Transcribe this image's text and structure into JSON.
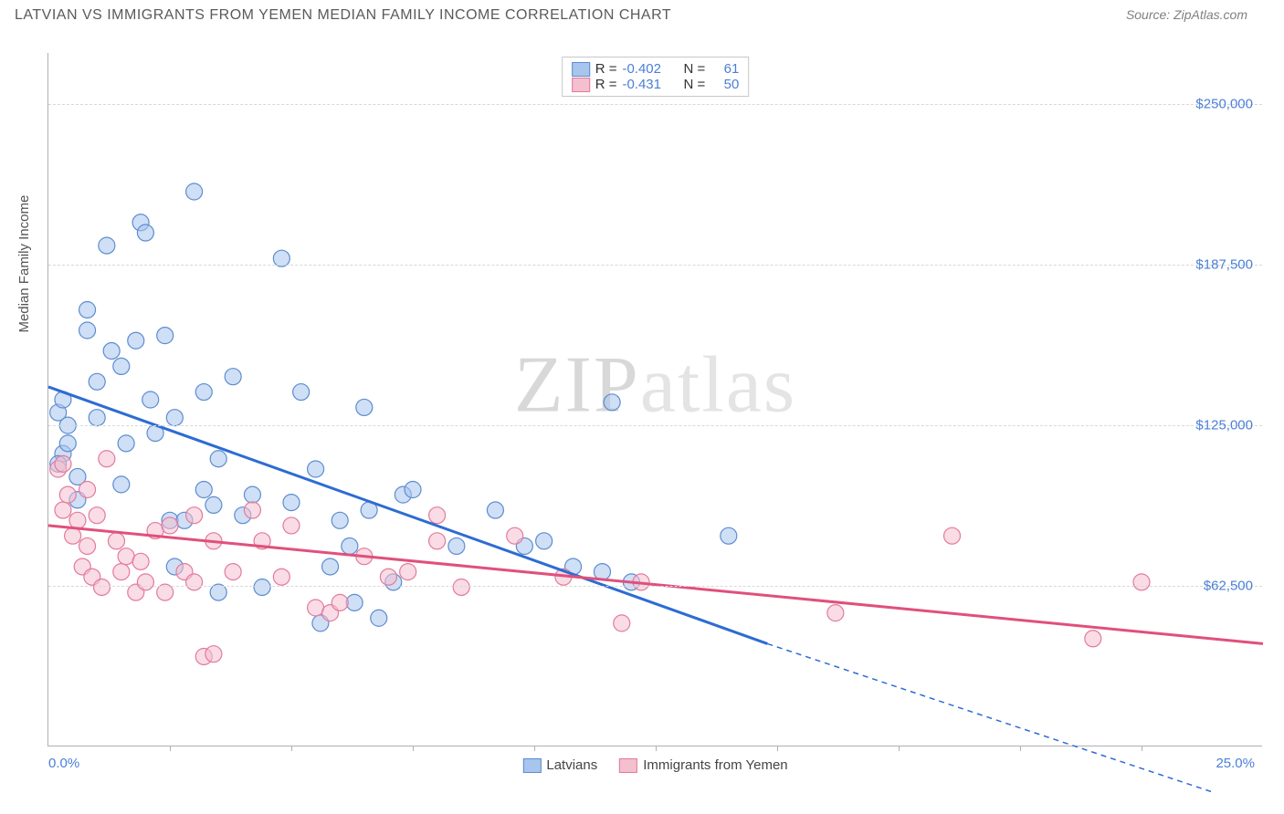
{
  "title": "LATVIAN VS IMMIGRANTS FROM YEMEN MEDIAN FAMILY INCOME CORRELATION CHART",
  "source_label": "Source: ZipAtlas.com",
  "watermark": {
    "bold": "ZIP",
    "light": "atlas"
  },
  "ylabel": "Median Family Income",
  "chart": {
    "type": "scatter",
    "xlim": [
      0,
      25
    ],
    "ylim": [
      0,
      270000
    ],
    "x_axis_min_label": "0.0%",
    "x_axis_max_label": "25.0%",
    "ytick_values": [
      62500,
      125000,
      187500,
      250000
    ],
    "ytick_labels": [
      "$62,500",
      "$125,000",
      "$187,500",
      "$250,000"
    ],
    "xtick_values": [
      2.5,
      5,
      7.5,
      10,
      12.5,
      15,
      17.5,
      20,
      22.5
    ],
    "grid_color": "#d8d8d8",
    "axis_color": "#b0b0b0",
    "tick_label_color": "#4a7fd6",
    "point_radius": 9,
    "point_opacity": 0.55,
    "series": [
      {
        "name": "Latvians",
        "color_fill": "#a7c5ed",
        "color_stroke": "#5d8cd0",
        "line_color": "#2d6cd2",
        "line_width": 3,
        "R": "-0.402",
        "N": "61",
        "regression": {
          "x1": 0,
          "y1": 140000,
          "x2": 14.8,
          "y2": 40000,
          "dash_x2": 24,
          "dash_y2": -18000
        },
        "points": [
          [
            0.3,
            114000
          ],
          [
            0.2,
            110000
          ],
          [
            0.2,
            130000
          ],
          [
            0.3,
            135000
          ],
          [
            0.4,
            118000
          ],
          [
            0.4,
            125000
          ],
          [
            0.6,
            105000
          ],
          [
            0.6,
            96000
          ],
          [
            0.8,
            162000
          ],
          [
            0.8,
            170000
          ],
          [
            1.0,
            128000
          ],
          [
            1.0,
            142000
          ],
          [
            1.2,
            195000
          ],
          [
            1.3,
            154000
          ],
          [
            1.5,
            102000
          ],
          [
            1.5,
            148000
          ],
          [
            1.6,
            118000
          ],
          [
            1.8,
            158000
          ],
          [
            1.9,
            204000
          ],
          [
            2.0,
            200000
          ],
          [
            2.1,
            135000
          ],
          [
            2.2,
            122000
          ],
          [
            2.4,
            160000
          ],
          [
            2.6,
            128000
          ],
          [
            2.5,
            88000
          ],
          [
            2.6,
            70000
          ],
          [
            2.8,
            88000
          ],
          [
            3.0,
            216000
          ],
          [
            3.2,
            138000
          ],
          [
            3.2,
            100000
          ],
          [
            3.4,
            94000
          ],
          [
            3.5,
            112000
          ],
          [
            3.5,
            60000
          ],
          [
            3.8,
            144000
          ],
          [
            4.0,
            90000
          ],
          [
            4.2,
            98000
          ],
          [
            4.4,
            62000
          ],
          [
            4.8,
            190000
          ],
          [
            5.0,
            95000
          ],
          [
            5.2,
            138000
          ],
          [
            5.5,
            108000
          ],
          [
            5.6,
            48000
          ],
          [
            5.8,
            70000
          ],
          [
            6.0,
            88000
          ],
          [
            6.2,
            78000
          ],
          [
            6.3,
            56000
          ],
          [
            6.5,
            132000
          ],
          [
            6.6,
            92000
          ],
          [
            6.8,
            50000
          ],
          [
            7.1,
            64000
          ],
          [
            7.3,
            98000
          ],
          [
            7.5,
            100000
          ],
          [
            8.4,
            78000
          ],
          [
            9.2,
            92000
          ],
          [
            9.8,
            78000
          ],
          [
            10.2,
            80000
          ],
          [
            10.8,
            70000
          ],
          [
            11.6,
            134000
          ],
          [
            11.4,
            68000
          ],
          [
            12.0,
            64000
          ],
          [
            14.0,
            82000
          ]
        ]
      },
      {
        "name": "Immigrants from Yemen",
        "color_fill": "#f4bfcf",
        "color_stroke": "#e47a9a",
        "line_color": "#e0507c",
        "line_width": 3,
        "R": "-0.431",
        "N": "50",
        "regression": {
          "x1": 0,
          "y1": 86000,
          "x2": 25,
          "y2": 40000
        },
        "points": [
          [
            0.2,
            108000
          ],
          [
            0.3,
            110000
          ],
          [
            0.3,
            92000
          ],
          [
            0.4,
            98000
          ],
          [
            0.5,
            82000
          ],
          [
            0.6,
            88000
          ],
          [
            0.7,
            70000
          ],
          [
            0.8,
            100000
          ],
          [
            0.8,
            78000
          ],
          [
            0.9,
            66000
          ],
          [
            1.0,
            90000
          ],
          [
            1.1,
            62000
          ],
          [
            1.2,
            112000
          ],
          [
            1.4,
            80000
          ],
          [
            1.5,
            68000
          ],
          [
            1.6,
            74000
          ],
          [
            1.8,
            60000
          ],
          [
            1.9,
            72000
          ],
          [
            2.0,
            64000
          ],
          [
            2.2,
            84000
          ],
          [
            2.4,
            60000
          ],
          [
            2.5,
            86000
          ],
          [
            2.8,
            68000
          ],
          [
            3.0,
            90000
          ],
          [
            3.0,
            64000
          ],
          [
            3.2,
            35000
          ],
          [
            3.4,
            80000
          ],
          [
            3.4,
            36000
          ],
          [
            3.8,
            68000
          ],
          [
            4.2,
            92000
          ],
          [
            4.4,
            80000
          ],
          [
            4.8,
            66000
          ],
          [
            5.0,
            86000
          ],
          [
            5.5,
            54000
          ],
          [
            5.8,
            52000
          ],
          [
            6.0,
            56000
          ],
          [
            6.5,
            74000
          ],
          [
            7.0,
            66000
          ],
          [
            7.4,
            68000
          ],
          [
            8.0,
            90000
          ],
          [
            8.0,
            80000
          ],
          [
            8.5,
            62000
          ],
          [
            9.6,
            82000
          ],
          [
            10.6,
            66000
          ],
          [
            11.8,
            48000
          ],
          [
            12.2,
            64000
          ],
          [
            16.2,
            52000
          ],
          [
            18.6,
            82000
          ],
          [
            21.5,
            42000
          ],
          [
            22.5,
            64000
          ]
        ]
      }
    ],
    "legend_top": {
      "R_label": "R =",
      "N_label": "N ="
    },
    "legend_bottom_labels": [
      "Latvians",
      "Immigrants from Yemen"
    ]
  }
}
